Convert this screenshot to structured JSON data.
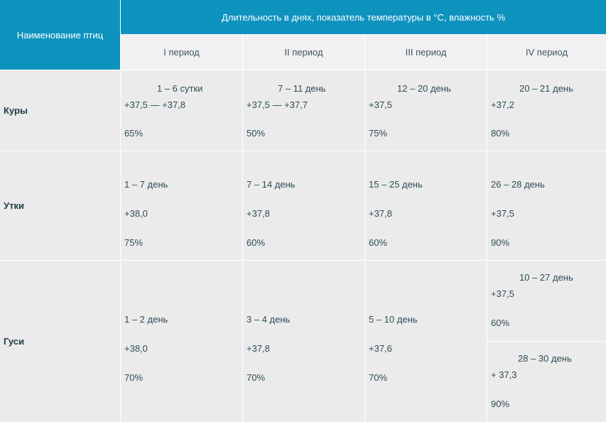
{
  "header": {
    "name_col": "Наименование птиц",
    "span_title": "Длительность в днях, показатель температуры в °С, влажность %",
    "periods": [
      "I период",
      "II период",
      "III период",
      "IV период"
    ]
  },
  "rows": {
    "kury": {
      "name": "Куры",
      "cells": [
        {
          "days": "1 – 6 сутки",
          "temp": "+37,5 — +37,8",
          "hum": "65%"
        },
        {
          "days": "7 – 11 день",
          "temp": "+37,5 — +37,7",
          "hum": "50%"
        },
        {
          "days": "12 – 20 день",
          "temp": "+37,5",
          "hum": "75%"
        },
        {
          "days": "20 – 21 день",
          "temp": "+37,2",
          "hum": "80%"
        }
      ]
    },
    "utki": {
      "name": "Утки",
      "cells": [
        {
          "days": "1 – 7 день",
          "temp": "+38,0",
          "hum": "75%"
        },
        {
          "days": "7 – 14 день",
          "temp": "+37,8",
          "hum": "60%"
        },
        {
          "days": "15 – 25 день",
          "temp": "+37,8",
          "hum": "60%"
        },
        {
          "days": "26 – 28 день",
          "temp": "+37,5",
          "hum": "90%"
        }
      ]
    },
    "gusi": {
      "name": "Гуси",
      "cells": [
        {
          "days": "1 – 2 день",
          "temp": "+38,0",
          "hum": "70%"
        },
        {
          "days": "3 – 4 день",
          "temp": "+37,8",
          "hum": "70%"
        },
        {
          "days": "5 – 10 день",
          "temp": "+37,6",
          "hum": "70%"
        }
      ],
      "period4_a": {
        "days": "10 – 27 день",
        "temp": "+37,5",
        "hum": "60%"
      },
      "period4_b": {
        "days": "28 – 30 день",
        "temp": "+ 37,3",
        "hum": "90%"
      }
    }
  }
}
